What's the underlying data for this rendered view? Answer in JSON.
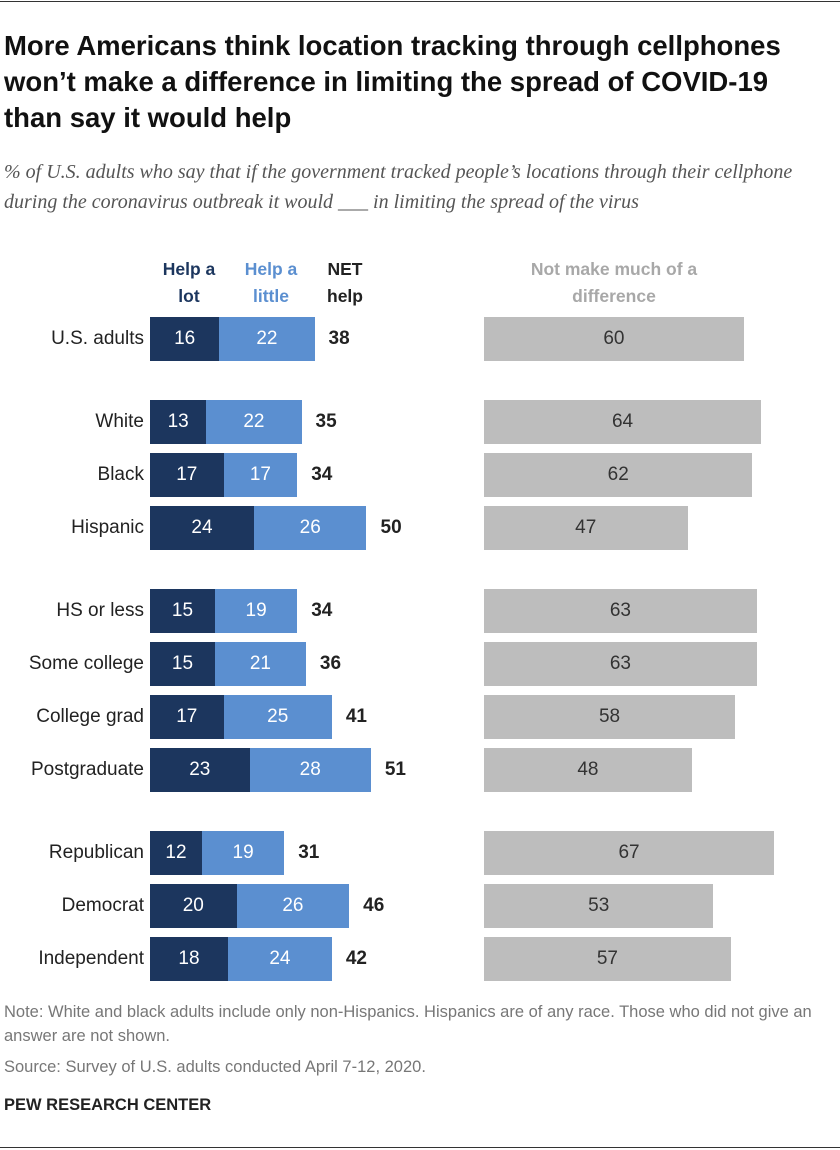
{
  "chart_data": {
    "type": "bar",
    "stacked": true,
    "title": "More Americans think location tracking through cellphones won’t make a difference in limiting the spread of COVID-19 than say it would help",
    "subtitle": "% of U.S. adults who say that if the government tracked people’s locations through their cellphone during the coronavirus outbreak it would ___ in limiting the spread of the virus",
    "categories": [
      "U.S. adults",
      "White",
      "Black",
      "Hispanic",
      "HS or less",
      "Some college",
      "College grad",
      "Postgraduate",
      "Republican",
      "Democrat",
      "Independent"
    ],
    "series": [
      {
        "name": "Help a lot",
        "kind": "stack",
        "color": "#1c365e",
        "values": [
          16,
          13,
          17,
          24,
          15,
          15,
          17,
          23,
          12,
          20,
          18
        ]
      },
      {
        "name": "Help a little",
        "kind": "stack",
        "color": "#5b8fd0",
        "values": [
          22,
          22,
          17,
          26,
          19,
          21,
          25,
          28,
          19,
          26,
          24
        ]
      },
      {
        "name": "NET help",
        "kind": "total",
        "color": "#222222",
        "values": [
          38,
          35,
          34,
          50,
          34,
          36,
          41,
          51,
          31,
          46,
          42
        ]
      },
      {
        "name": "Not make much of a difference",
        "kind": "separate",
        "color": "#bdbdbd",
        "values": [
          60,
          64,
          62,
          47,
          63,
          63,
          58,
          48,
          67,
          53,
          57
        ]
      }
    ],
    "note": "Note: White and black adults include only non-Hispanics. Hispanics are of any race. Those who did not give an answer are not shown.",
    "source": "Source: Survey of U.S. adults conducted April 7-12, 2020.",
    "brand": "PEW RESEARCH CENTER"
  }
}
